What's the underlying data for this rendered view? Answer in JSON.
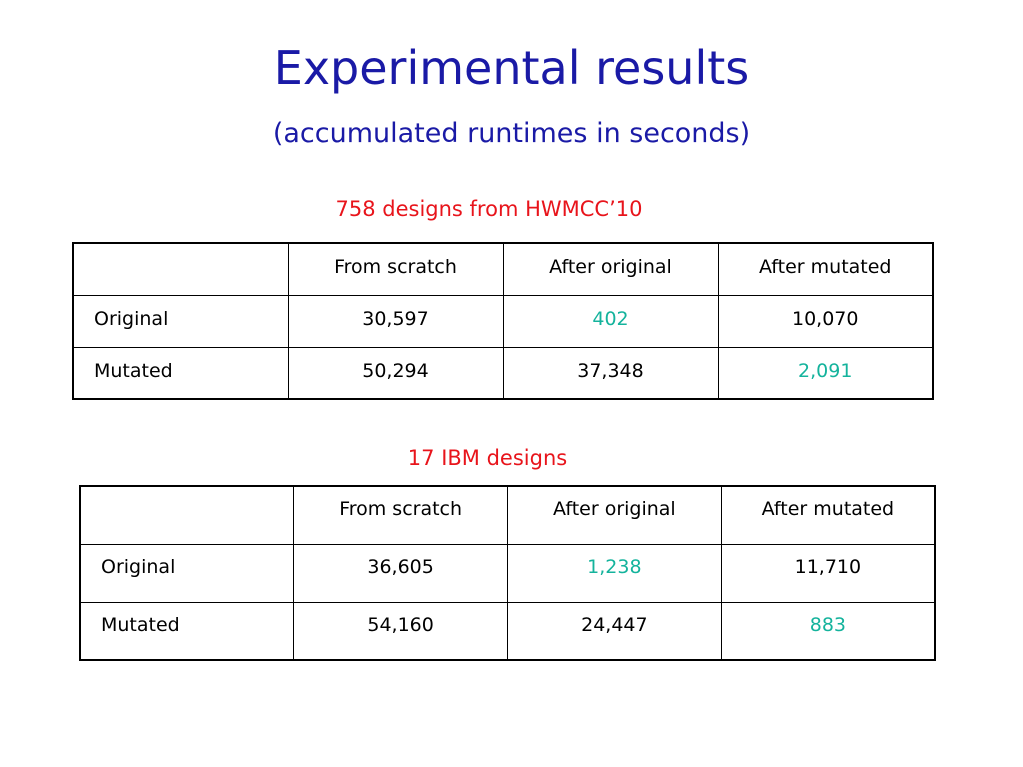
{
  "title": "Experimental results",
  "subtitle": "(accumulated runtimes in seconds)",
  "colors": {
    "title": "#1a1aa6",
    "caption": "#e8141b",
    "highlight": "#14b39c"
  },
  "tables": [
    {
      "caption": "758 designs from HWMCC’10",
      "columns": [
        "",
        "From scratch",
        "After original",
        "After mutated"
      ],
      "rows": [
        {
          "label": "Original",
          "from_scratch": "30,597",
          "after_original": "402",
          "after_mutated": "10,070",
          "highlighted": "after_original"
        },
        {
          "label": "Mutated",
          "from_scratch": "50,294",
          "after_original": "37,348",
          "after_mutated": "2,091",
          "highlighted": "after_mutated"
        }
      ]
    },
    {
      "caption": "17 IBM designs",
      "columns": [
        "",
        "From scratch",
        "After original",
        "After mutated"
      ],
      "rows": [
        {
          "label": "Original",
          "from_scratch": "36,605",
          "after_original": "1,238",
          "after_mutated": "11,710",
          "highlighted": "after_original"
        },
        {
          "label": "Mutated",
          "from_scratch": "54,160",
          "after_original": "24,447",
          "after_mutated": "883",
          "highlighted": "after_mutated"
        }
      ]
    }
  ]
}
